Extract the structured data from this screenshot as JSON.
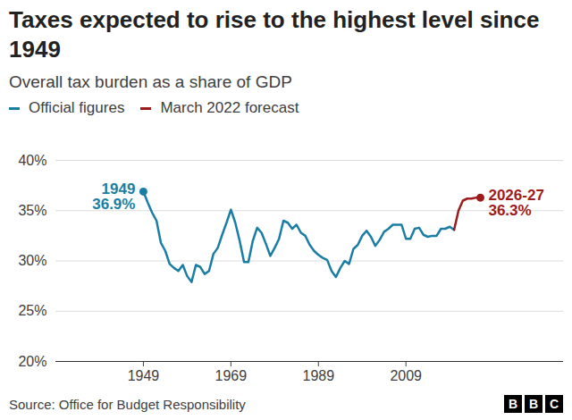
{
  "chart_data": {
    "type": "line",
    "title": "Taxes expected to rise to the highest level since 1949",
    "subtitle": "Overall tax burden as a share of GDP",
    "x": [
      1949,
      1950,
      1951,
      1952,
      1953,
      1954,
      1955,
      1956,
      1957,
      1958,
      1959,
      1960,
      1961,
      1962,
      1963,
      1964,
      1965,
      1966,
      1967,
      1968,
      1969,
      1970,
      1971,
      1972,
      1973,
      1974,
      1975,
      1976,
      1977,
      1978,
      1979,
      1980,
      1981,
      1982,
      1983,
      1984,
      1985,
      1986,
      1987,
      1988,
      1989,
      1990,
      1991,
      1992,
      1993,
      1994,
      1995,
      1996,
      1997,
      1998,
      1999,
      2000,
      2001,
      2002,
      2003,
      2004,
      2005,
      2006,
      2007,
      2008,
      2009,
      2010,
      2011,
      2012,
      2013,
      2014,
      2015,
      2016,
      2017,
      2018,
      2019,
      2020,
      2021,
      2022,
      2023,
      2024,
      2025,
      2026
    ],
    "series": [
      {
        "name": "Official figures",
        "color": "#1a7ea4",
        "values": [
          36.9,
          35.8,
          34.8,
          34.0,
          31.8,
          31.0,
          29.7,
          29.3,
          29.0,
          29.6,
          28.5,
          27.9,
          29.6,
          29.4,
          28.7,
          29.0,
          30.7,
          31.3,
          32.6,
          33.8,
          35.1,
          33.8,
          32.0,
          29.9,
          29.9,
          32.0,
          33.3,
          32.8,
          31.7,
          30.5,
          31.3,
          32.2,
          34.0,
          33.8,
          33.2,
          33.6,
          32.8,
          32.5,
          31.6,
          31.0,
          30.6,
          30.3,
          30.1,
          29.0,
          28.4,
          29.3,
          30.0,
          29.7,
          31.2,
          31.6,
          32.5,
          33.0,
          32.4,
          31.5,
          32.1,
          32.9,
          33.2,
          33.6,
          33.6,
          33.6,
          32.2,
          32.2,
          33.2,
          33.3,
          32.6,
          32.4,
          32.5,
          32.5,
          33.2,
          33.2,
          33.4,
          33.1,
          null,
          null,
          null,
          null,
          null,
          null
        ]
      },
      {
        "name": "March 2022 forecast",
        "color": "#9e1b1b",
        "values": [
          null,
          null,
          null,
          null,
          null,
          null,
          null,
          null,
          null,
          null,
          null,
          null,
          null,
          null,
          null,
          null,
          null,
          null,
          null,
          null,
          null,
          null,
          null,
          null,
          null,
          null,
          null,
          null,
          null,
          null,
          null,
          null,
          null,
          null,
          null,
          null,
          null,
          null,
          null,
          null,
          null,
          null,
          null,
          null,
          null,
          null,
          null,
          null,
          null,
          null,
          null,
          null,
          null,
          null,
          null,
          null,
          null,
          null,
          null,
          null,
          null,
          null,
          null,
          null,
          null,
          null,
          null,
          null,
          null,
          null,
          null,
          33.1,
          35.0,
          36.0,
          36.2,
          36.2,
          36.3,
          36.3
        ]
      }
    ],
    "xlim": [
      1929,
      2045
    ],
    "xticks": [
      1949,
      1969,
      1989,
      2009
    ],
    "ylim": [
      20,
      40
    ],
    "yticks": [
      {
        "value": 20,
        "label": "20%"
      },
      {
        "value": 25,
        "label": "25%"
      },
      {
        "value": 30,
        "label": "30%"
      },
      {
        "value": 35,
        "label": "35%"
      },
      {
        "value": 40,
        "label": "40%"
      }
    ],
    "grid": true,
    "legend": "top-left",
    "annotations": [
      {
        "x": 1949,
        "y": 36.9,
        "lines": [
          "1949",
          "36.9%"
        ],
        "color": "#1a7ea4"
      },
      {
        "x": 2026,
        "y": 36.3,
        "lines": [
          "2026-27",
          "36.3%"
        ],
        "color": "#9e1b1b"
      }
    ],
    "source": "Source: Office for Budget Responsibility",
    "logo": "BBC"
  }
}
